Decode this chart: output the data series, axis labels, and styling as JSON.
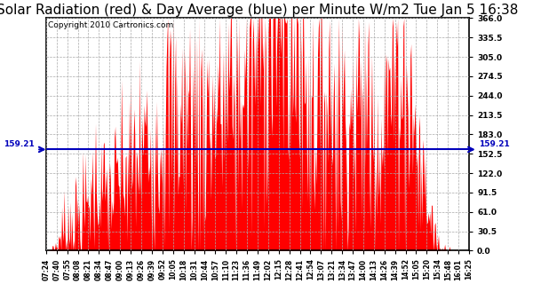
{
  "title": "Solar Radiation (red) & Day Average (blue) per Minute W/m2 Tue Jan 5 16:38",
  "copyright": "Copyright 2010 Cartronics.com",
  "y_max": 366.0,
  "y_min": 0.0,
  "y_ticks": [
    0.0,
    30.5,
    61.0,
    91.5,
    122.0,
    152.5,
    183.0,
    213.5,
    244.0,
    274.5,
    305.0,
    335.5,
    366.0
  ],
  "average_value": 159.21,
  "fill_color": "#FF0000",
  "avg_line_color": "#0000BB",
  "background_color": "#FFFFFF",
  "grid_color": "#AAAAAA",
  "title_fontsize": 11,
  "copyright_fontsize": 6.5,
  "x_labels": [
    "07:24",
    "07:40",
    "07:55",
    "08:08",
    "08:21",
    "08:34",
    "08:47",
    "09:00",
    "09:13",
    "09:26",
    "09:39",
    "09:52",
    "10:05",
    "10:18",
    "10:31",
    "10:44",
    "10:57",
    "11:10",
    "11:23",
    "11:36",
    "11:49",
    "12:02",
    "12:15",
    "12:28",
    "12:41",
    "12:54",
    "13:07",
    "13:21",
    "13:34",
    "13:47",
    "14:00",
    "14:13",
    "14:26",
    "14:39",
    "14:52",
    "15:05",
    "15:20",
    "15:34",
    "15:48",
    "16:01",
    "16:25"
  ],
  "num_points": 540
}
